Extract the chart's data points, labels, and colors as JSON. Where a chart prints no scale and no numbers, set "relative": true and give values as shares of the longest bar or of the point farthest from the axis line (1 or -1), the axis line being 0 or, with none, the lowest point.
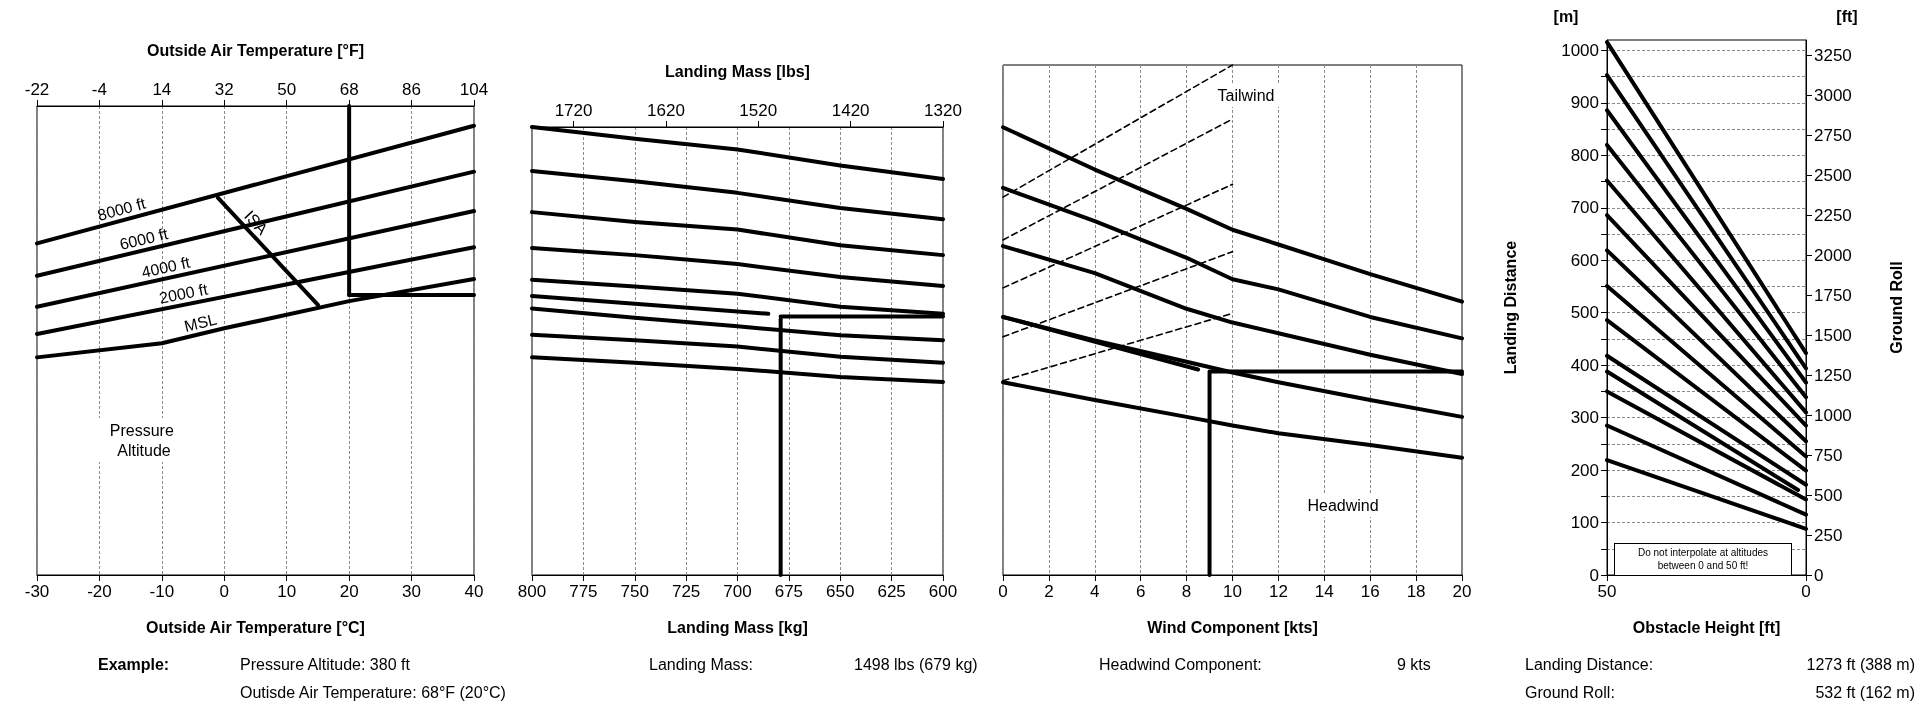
{
  "chart_data": [
    {
      "type": "line",
      "relative": true,
      "xlabel": "Outside Air Temperature [°C]",
      "x2label": "Outside Air Temperature [°F]",
      "xlim": [
        -30,
        40
      ],
      "xticks": [
        -30,
        -20,
        -10,
        0,
        10,
        20,
        30,
        40
      ],
      "x2lim": [
        -22,
        104
      ],
      "x2ticks": [
        -22,
        -4,
        14,
        32,
        50,
        68,
        86,
        104
      ],
      "grid": "x",
      "series": [
        {
          "name": "8000 ft",
          "color": "#000000",
          "x": [
            -30,
            40
          ],
          "values": [
            0.707,
            0.958
          ]
        },
        {
          "name": "6000 ft",
          "color": "#000000",
          "x": [
            -30,
            40
          ],
          "values": [
            0.638,
            0.86
          ]
        },
        {
          "name": "4000 ft",
          "color": "#000000",
          "x": [
            -30,
            40
          ],
          "values": [
            0.572,
            0.776
          ]
        },
        {
          "name": "2000 ft",
          "color": "#000000",
          "x": [
            -30,
            40
          ],
          "values": [
            0.514,
            0.699
          ]
        },
        {
          "name": "MSL",
          "color": "#000000",
          "x": [
            -30,
            -10,
            0,
            20,
            40
          ],
          "values": [
            0.464,
            0.494,
            0.526,
            0.584,
            0.631
          ]
        },
        {
          "name": "ISA",
          "color": "#000000",
          "x": [
            -1,
            15
          ],
          "values": [
            0.804,
            0.576
          ]
        },
        {
          "color": "#000000",
          "x": [
            20,
            20
          ],
          "values": [
            1,
            0.597
          ]
        },
        {
          "color": "#000000",
          "x": [
            20,
            40
          ],
          "values": [
            0.597,
            0.597
          ]
        }
      ],
      "annotations": [
        "Pressure Altitude",
        "Example:",
        "Pressure Altitude: 380 ft",
        "Outisde Air Temperature: 68°F (20°C)"
      ]
    },
    {
      "type": "line",
      "relative": true,
      "xlabel": "Landing Mass [kg]",
      "x2label": "Landing Mass [lbs]",
      "xlim": [
        800,
        600
      ],
      "xticks": [
        800,
        775,
        750,
        725,
        700,
        675,
        650,
        625,
        600
      ],
      "x2lim": [
        1765,
        1320
      ],
      "x2ticks": [
        1720,
        1620,
        1520,
        1420,
        1320
      ],
      "grid": "x",
      "x": [
        800,
        750,
        700,
        650,
        600
      ],
      "series": [
        {
          "color": "#000000",
          "values": [
            1,
            0.974,
            0.95,
            0.914,
            0.884
          ]
        },
        {
          "color": "#000000",
          "values": [
            0.902,
            0.879,
            0.853,
            0.819,
            0.794
          ]
        },
        {
          "color": "#000000",
          "values": [
            0.81,
            0.788,
            0.771,
            0.736,
            0.714
          ]
        },
        {
          "color": "#000000",
          "values": [
            0.73,
            0.714,
            0.694,
            0.665,
            0.645
          ]
        },
        {
          "color": "#000000",
          "values": [
            0.659,
            0.644,
            0.628,
            0.599,
            0.583
          ]
        },
        {
          "color": "#000000",
          "values": [
            0.595,
            0.574,
            0.555,
            0.535,
            0.524
          ]
        },
        {
          "color": "#000000",
          "values": [
            0.536,
            0.524,
            0.51,
            0.487,
            0.474
          ]
        },
        {
          "color": "#000000",
          "values": [
            0.486,
            0.474,
            0.46,
            0.442,
            0.431
          ]
        },
        {
          "color": "#000000",
          "x": [
            800,
            685
          ],
          "values": [
            0.623,
            0.583
          ]
        },
        {
          "color": "#000000",
          "x": [
            679,
            679
          ],
          "values": [
            0,
            0.571
          ]
        },
        {
          "color": "#000000",
          "x": [
            679,
            600
          ],
          "values": [
            0.577,
            0.577
          ]
        }
      ],
      "annotations": [
        "Landing Mass:",
        "1498 lbs (679 kg)"
      ]
    },
    {
      "type": "line",
      "relative": true,
      "xlabel": "Wind Component [kts]",
      "xlim": [
        0,
        20
      ],
      "xticks": [
        0,
        2,
        4,
        6,
        8,
        10,
        12,
        14,
        16,
        18,
        20
      ],
      "grid": "x",
      "x": [
        0,
        4,
        8,
        10,
        12,
        16,
        20
      ],
      "series": [
        {
          "color": "#000000",
          "values": [
            0.878,
            0.795,
            0.718,
            0.677,
            0.648,
            0.59,
            0.536
          ]
        },
        {
          "color": "#000000",
          "values": [
            0.759,
            0.694,
            0.622,
            0.58,
            0.56,
            0.506,
            0.464
          ]
        },
        {
          "color": "#000000",
          "values": [
            0.645,
            0.592,
            0.522,
            0.495,
            0.474,
            0.432,
            0.394
          ]
        },
        {
          "color": "#000000",
          "values": [
            0.506,
            0.46,
            0.418,
            0.397,
            0.378,
            0.343,
            0.31
          ]
        },
        {
          "color": "#000000",
          "values": [
            0.378,
            0.343,
            0.31,
            0.293,
            0.278,
            0.255,
            0.23
          ]
        },
        {
          "color": "#000000",
          "x": [
            0,
            10
          ],
          "values": [
            0.741,
            1
          ],
          "line_style": "dashed"
        },
        {
          "color": "#000000",
          "x": [
            0,
            10
          ],
          "values": [
            0.657,
            0.894
          ],
          "line_style": "dashed"
        },
        {
          "color": "#000000",
          "x": [
            0,
            10
          ],
          "values": [
            0.563,
            0.766
          ],
          "line_style": "dashed"
        },
        {
          "color": "#000000",
          "x": [
            0,
            10
          ],
          "values": [
            0.467,
            0.634
          ],
          "line_style": "dashed"
        },
        {
          "color": "#000000",
          "x": [
            0,
            10
          ],
          "values": [
            0.381,
            0.513
          ],
          "line_style": "dashed"
        },
        {
          "color": "#000000",
          "x": [
            0,
            8.5
          ],
          "values": [
            0.506,
            0.403
          ]
        },
        {
          "color": "#000000",
          "x": [
            9,
            9
          ],
          "values": [
            0,
            0.396
          ]
        },
        {
          "color": "#000000",
          "x": [
            9,
            20
          ],
          "values": [
            0.399,
            0.399
          ]
        }
      ],
      "annotations": [
        "Tailwind",
        "Headwind",
        "Headwind Component:",
        "9 kts"
      ]
    },
    {
      "type": "line",
      "xlabel": "Obstacle Height [ft]",
      "ylabel": "Landing Distance",
      "y2label": "Ground Roll",
      "xlim": [
        50,
        0
      ],
      "xticks": [
        50,
        0
      ],
      "ylim": [
        0,
        1020
      ],
      "yticks": [
        0,
        {
          "value": 50,
          "label": null
        },
        100,
        {
          "value": 150,
          "label": null
        },
        200,
        {
          "value": 250,
          "label": null
        },
        300,
        {
          "value": 350,
          "label": null
        },
        400,
        {
          "value": 450,
          "label": null
        },
        500,
        {
          "value": 550,
          "label": null
        },
        600,
        {
          "value": 650,
          "label": null
        },
        700,
        {
          "value": 750,
          "label": null
        },
        800,
        {
          "value": 850,
          "label": null
        },
        900,
        {
          "value": 950,
          "label": null
        },
        1000
      ],
      "y2lim": [
        0,
        3346
      ],
      "y2ticks": [
        0,
        250,
        500,
        750,
        1000,
        1250,
        1500,
        1750,
        2000,
        2250,
        2500,
        2750,
        3000,
        3250
      ],
      "grid": "y",
      "x": [
        50,
        0
      ],
      "series": [
        {
          "color": "#000000",
          "values": [
            1016,
            423
          ]
        },
        {
          "color": "#000000",
          "values": [
            953,
            394
          ]
        },
        {
          "color": "#000000",
          "values": [
            886,
            367
          ]
        },
        {
          "color": "#000000",
          "values": [
            820,
            339
          ]
        },
        {
          "color": "#000000",
          "values": [
            752,
            310
          ]
        },
        {
          "color": "#000000",
          "values": [
            686,
            285
          ]
        },
        {
          "color": "#000000",
          "values": [
            619,
            255
          ]
        },
        {
          "color": "#000000",
          "values": [
            551,
            226
          ]
        },
        {
          "color": "#000000",
          "values": [
            486,
            199
          ]
        },
        {
          "color": "#000000",
          "values": [
            418,
            172
          ]
        },
        {
          "color": "#000000",
          "values": [
            350,
            144
          ]
        },
        {
          "color": "#000000",
          "values": [
            285,
            115
          ]
        },
        {
          "color": "#000000",
          "values": [
            219,
            88
          ]
        },
        {
          "color": "#000000",
          "x": [
            50,
            2
          ],
          "values": [
            388,
            162
          ]
        }
      ],
      "annotations": [
        "[m]",
        "[ft]",
        "Do not interpolate at altitudes between 0 and 50 ft!",
        "Landing Distance:",
        "1273 ft (388 m)",
        "Ground Roll:",
        "532 ft (162 m)"
      ]
    }
  ]
}
